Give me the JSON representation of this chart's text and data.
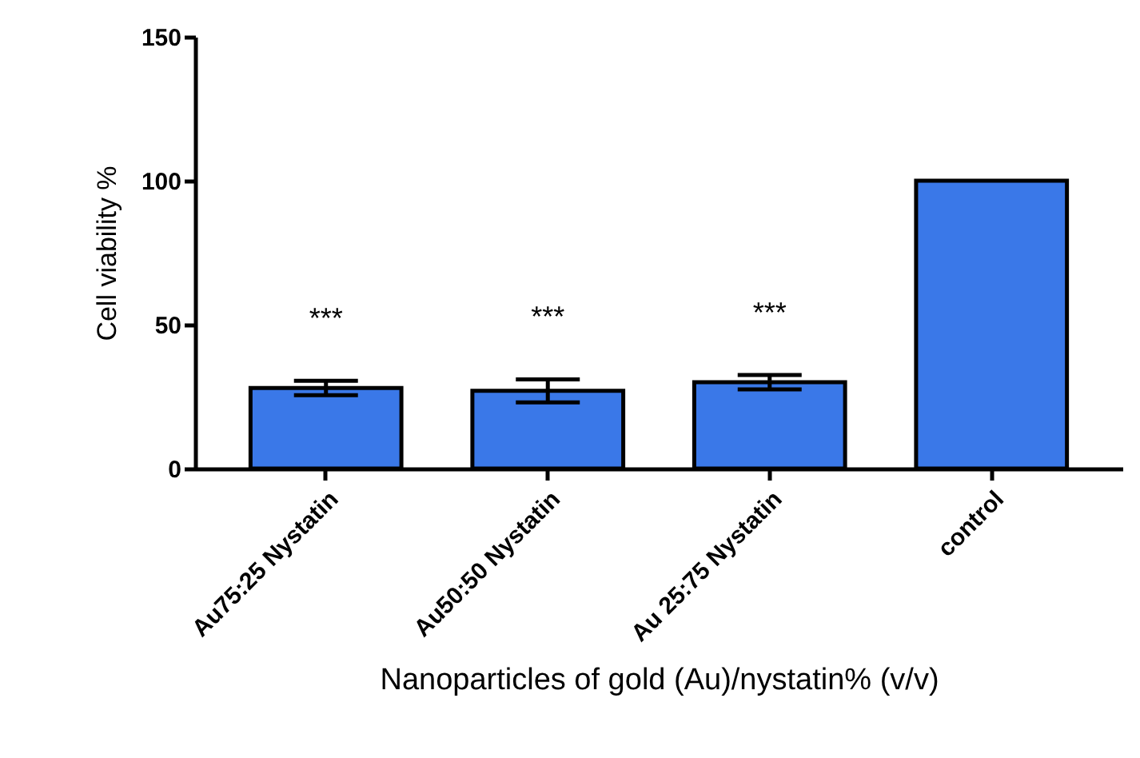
{
  "chart_data": {
    "type": "bar",
    "xlabel": "Nanoparticles of gold (Au)/nystatin% (v/v)",
    "ylabel": "Cell viability %",
    "categories": [
      "Au75:25 Nystatin",
      "Au50:50 Nystatin",
      "Au 25:75 Nystatin",
      "control"
    ],
    "values": [
      28,
      27,
      30,
      100
    ],
    "errors": [
      2.5,
      4,
      2.5,
      null
    ],
    "color": "#3a78e8",
    "ylim": [
      0,
      150
    ],
    "yticks": [
      0,
      50,
      100,
      150
    ],
    "grid": false,
    "annotations": [
      "***",
      "***",
      "***"
    ]
  }
}
